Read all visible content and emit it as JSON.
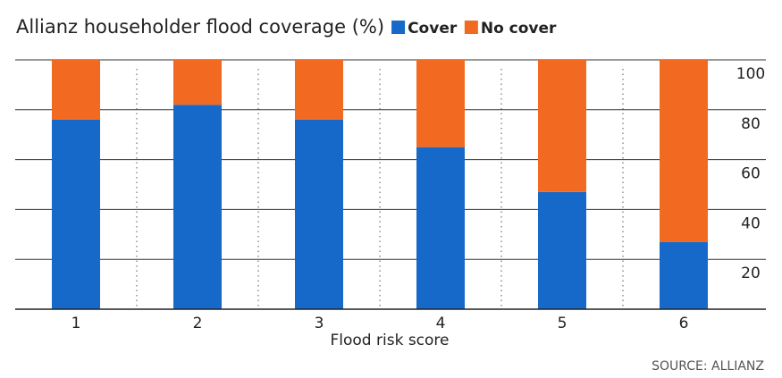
{
  "chart_data": {
    "type": "stacked-bar",
    "title": "Allianz householder flood coverage (%)",
    "x_label": "Flood risk score",
    "source": "SOURCE: ALLIANZ",
    "categories": [
      "1",
      "2",
      "3",
      "4",
      "5",
      "6"
    ],
    "series": [
      {
        "name": "Cover",
        "color": "#1769c9",
        "values": [
          76,
          82,
          76,
          65,
          47,
          27
        ]
      },
      {
        "name": "No cover",
        "color": "#f26a21",
        "values": [
          24,
          18,
          24,
          35,
          53,
          73
        ]
      }
    ],
    "ylim": [
      0,
      100
    ],
    "yticks": [
      20,
      40,
      60,
      80,
      100
    ],
    "grid": true
  }
}
